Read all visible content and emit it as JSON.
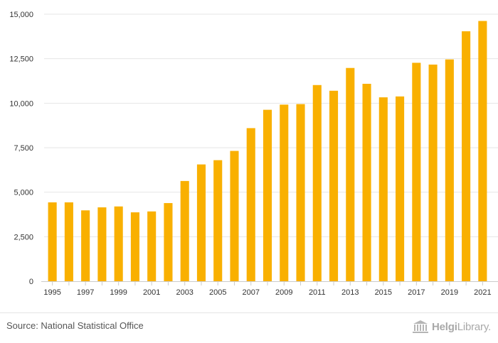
{
  "chart_data": {
    "type": "bar",
    "title": "",
    "xlabel": "",
    "ylabel": "",
    "ylim": [
      0,
      15000
    ],
    "yticks": [
      "0",
      "2,500",
      "5,000",
      "7,500",
      "10,000",
      "12,500",
      "15,000"
    ],
    "ytick_values": [
      0,
      2500,
      5000,
      7500,
      10000,
      12500,
      15000
    ],
    "categories": [
      "1995",
      "1996",
      "1997",
      "1998",
      "1999",
      "2000",
      "2001",
      "2002",
      "2003",
      "2004",
      "2005",
      "2006",
      "2007",
      "2008",
      "2009",
      "2010",
      "2011",
      "2012",
      "2013",
      "2014",
      "2015",
      "2016",
      "2017",
      "2018",
      "2019",
      "2020",
      "2021"
    ],
    "xtick_labels_shown": [
      "1995",
      "1997",
      "1999",
      "2001",
      "2003",
      "2005",
      "2007",
      "2009",
      "2011",
      "2013",
      "2015",
      "2017",
      "2019",
      "2021"
    ],
    "values": [
      4430,
      4430,
      3980,
      4150,
      4200,
      3870,
      3920,
      4390,
      5630,
      6560,
      6800,
      7320,
      8600,
      9630,
      9920,
      9950,
      11020,
      10700,
      11980,
      11090,
      10330,
      10380,
      12270,
      12170,
      12460,
      14040,
      14620
    ],
    "bar_color": "#F9B000",
    "grid": true
  },
  "footer": {
    "source": "Source: National Statistical Office",
    "logo_left": "Helgi",
    "logo_right": "Library."
  }
}
